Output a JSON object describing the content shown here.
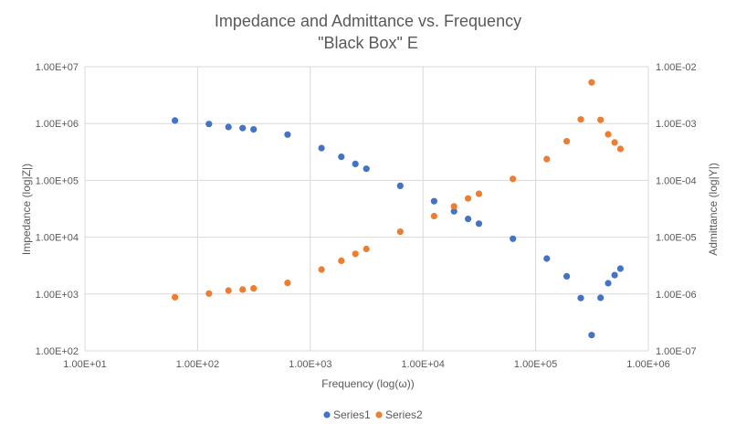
{
  "chart_data": {
    "type": "scatter",
    "title": "Impedance and Admittance vs. Frequency",
    "subtitle": "\"Black Box\" E",
    "xlabel": "Frequency (log(ω))",
    "ylabel": "Impedance (log|Z|)",
    "y2label": "Admittance (log|Y|)",
    "xscale": "log",
    "yscale": "log",
    "y2scale": "log",
    "xlim": [
      10,
      1000000
    ],
    "ylim": [
      100,
      10000000
    ],
    "y2lim": [
      1e-07,
      0.01
    ],
    "xticks": [
      "1.00E+01",
      "1.00E+02",
      "1.00E+03",
      "1.00E+04",
      "1.00E+05",
      "1.00E+06"
    ],
    "yticks": [
      "1.00E+02",
      "1.00E+03",
      "1.00E+04",
      "1.00E+05",
      "1.00E+06",
      "1.00E+07"
    ],
    "y2ticks": [
      "1.00E-07",
      "1.00E-06",
      "1.00E-05",
      "1.00E-04",
      "1.00E-03",
      "1.00E-02"
    ],
    "grid": true,
    "legend_position": "bottom",
    "series": [
      {
        "name": "Series1",
        "color": "#4472C4",
        "axis": "left",
        "points": [
          [
            63,
            1130000
          ],
          [
            126,
            980000
          ],
          [
            188,
            870000
          ],
          [
            251,
            830000
          ],
          [
            314,
            790000
          ],
          [
            628,
            640000
          ],
          [
            1257,
            370000
          ],
          [
            1885,
            260000
          ],
          [
            2513,
            195000
          ],
          [
            3142,
            160000
          ],
          [
            6283,
            80000
          ],
          [
            12566,
            43000
          ],
          [
            18850,
            28500
          ],
          [
            25133,
            21000
          ],
          [
            31416,
            17300
          ],
          [
            62832,
            9400
          ],
          [
            125664,
            4200
          ],
          [
            188496,
            2050
          ],
          [
            251327,
            850
          ],
          [
            314159,
            190
          ],
          [
            376991,
            860
          ],
          [
            439823,
            1550
          ],
          [
            502655,
            2150
          ],
          [
            565487,
            2800
          ]
        ]
      },
      {
        "name": "Series2",
        "color": "#ED7D31",
        "axis": "right",
        "points": [
          [
            63,
            8.8e-07
          ],
          [
            126,
            1.02e-06
          ],
          [
            188,
            1.15e-06
          ],
          [
            251,
            1.2e-06
          ],
          [
            314,
            1.26e-06
          ],
          [
            628,
            1.57e-06
          ],
          [
            1257,
            2.7e-06
          ],
          [
            1885,
            3.85e-06
          ],
          [
            2513,
            5.1e-06
          ],
          [
            3142,
            6.2e-06
          ],
          [
            6283,
            1.25e-05
          ],
          [
            12566,
            2.35e-05
          ],
          [
            18850,
            3.5e-05
          ],
          [
            25133,
            4.8e-05
          ],
          [
            31416,
            5.8e-05
          ],
          [
            62832,
            0.000106
          ],
          [
            125664,
            0.000237
          ],
          [
            188496,
            0.000488
          ],
          [
            251327,
            0.00118
          ],
          [
            314159,
            0.0053
          ],
          [
            376991,
            0.00116
          ],
          [
            439823,
            0.000645
          ],
          [
            502655,
            0.000465
          ],
          [
            565487,
            0.000357
          ]
        ]
      }
    ]
  }
}
